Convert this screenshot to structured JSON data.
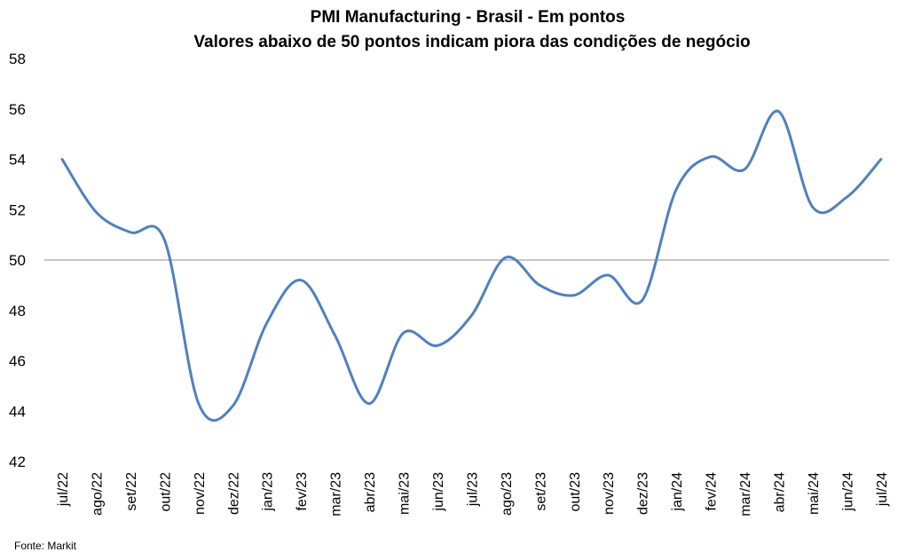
{
  "chart_data": {
    "type": "line",
    "title": "PMI Manufacturing - Brasil - Em pontos",
    "subtitle": "Valores abaixo de 50 pontos indicam piora das condições de negócio",
    "xlabel": "",
    "ylabel": "",
    "categories": [
      "jul/22",
      "ago/22",
      "set/22",
      "out/22",
      "nov/22",
      "dez/22",
      "jan/23",
      "fev/23",
      "mar/23",
      "abr/23",
      "mai/23",
      "jun/23",
      "jul/23",
      "ago/23",
      "set/23",
      "out/23",
      "nov/23",
      "dez/23",
      "jan/24",
      "fev/24",
      "mar/24",
      "abr/24",
      "mai/24",
      "jun/24",
      "jul/24"
    ],
    "series": [
      {
        "values": [
          54.0,
          51.9,
          51.1,
          50.8,
          44.3,
          44.2,
          47.5,
          49.2,
          47.0,
          44.3,
          47.1,
          46.6,
          47.8,
          50.1,
          49.0,
          48.6,
          49.4,
          48.4,
          52.8,
          54.1,
          53.6,
          55.9,
          52.1,
          52.5,
          54.0
        ]
      }
    ],
    "ylim": [
      42,
      58
    ],
    "yticks": [
      "42",
      "44",
      "46",
      "48",
      "50",
      "52",
      "54",
      "56",
      "58"
    ],
    "reference_line": 50,
    "grid": false,
    "line_color": "#4F81BD",
    "source": "Fonte: Markit"
  }
}
